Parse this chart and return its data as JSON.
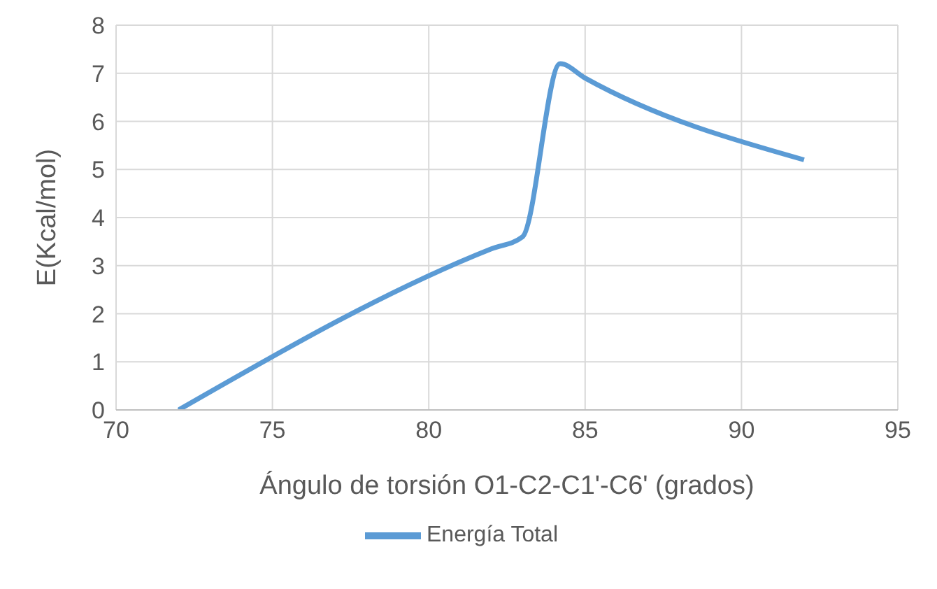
{
  "chart_data": {
    "type": "line",
    "xlabel": "Ángulo de torsión O1-C2-C1'-C6'  (grados)",
    "ylabel": "E(Kcal/mol)",
    "x": [
      72,
      82,
      83,
      84.2,
      85,
      92
    ],
    "series": [
      {
        "name": "Energía Total",
        "color": "#5b9bd5",
        "values": [
          0,
          3.35,
          3.6,
          7.2,
          6.9,
          5.2
        ]
      }
    ],
    "xlim": [
      70,
      95
    ],
    "xticks": [
      70,
      75,
      80,
      85,
      90,
      95
    ],
    "ylim": [
      0,
      8
    ],
    "yticks": [
      0,
      1,
      2,
      3,
      4,
      5,
      6,
      7,
      8
    ],
    "grid": true,
    "legend": "bottom",
    "marker": "none"
  }
}
